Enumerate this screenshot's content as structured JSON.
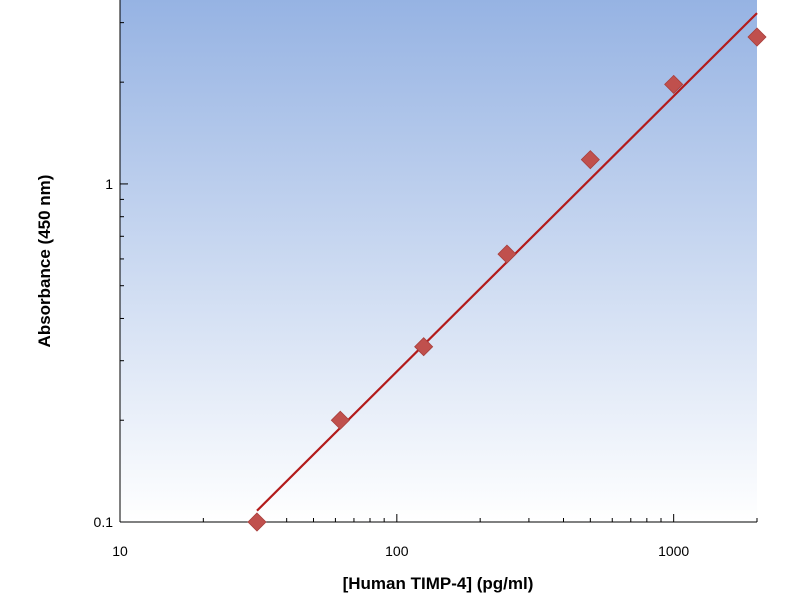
{
  "chart_data": {
    "type": "scatter",
    "title": "",
    "xlabel": "[Human TIMP-4] (pg/ml)",
    "ylabel": "Absorbance (450 nm)",
    "xscale": "log",
    "yscale": "log",
    "xlim": [
      10,
      2000
    ],
    "ylim": [
      0.1,
      3.5
    ],
    "x_ticks": [
      10,
      100,
      1000
    ],
    "x_tick_labels": [
      "10",
      "100",
      "1000"
    ],
    "y_ticks": [
      0.1,
      1
    ],
    "y_tick_labels": [
      "0.1",
      "1"
    ],
    "grid": false,
    "legend": "none",
    "series": [
      {
        "type": "scatter",
        "marker": "diamond",
        "x": [
          31.25,
          62.5,
          125,
          250,
          500,
          1000,
          2000
        ],
        "y": [
          0.1,
          0.2,
          0.33,
          0.62,
          1.18,
          1.97,
          2.72
        ]
      },
      {
        "type": "line",
        "x": [
          31.25,
          2000
        ],
        "y": [
          0.108,
          3.2
        ]
      }
    ],
    "colors": {
      "marker": "#c0504d",
      "fit_line": "#b31b1b",
      "plot_bg_top": "#96b3e3",
      "plot_bg_bottom": "#ffffff"
    }
  }
}
